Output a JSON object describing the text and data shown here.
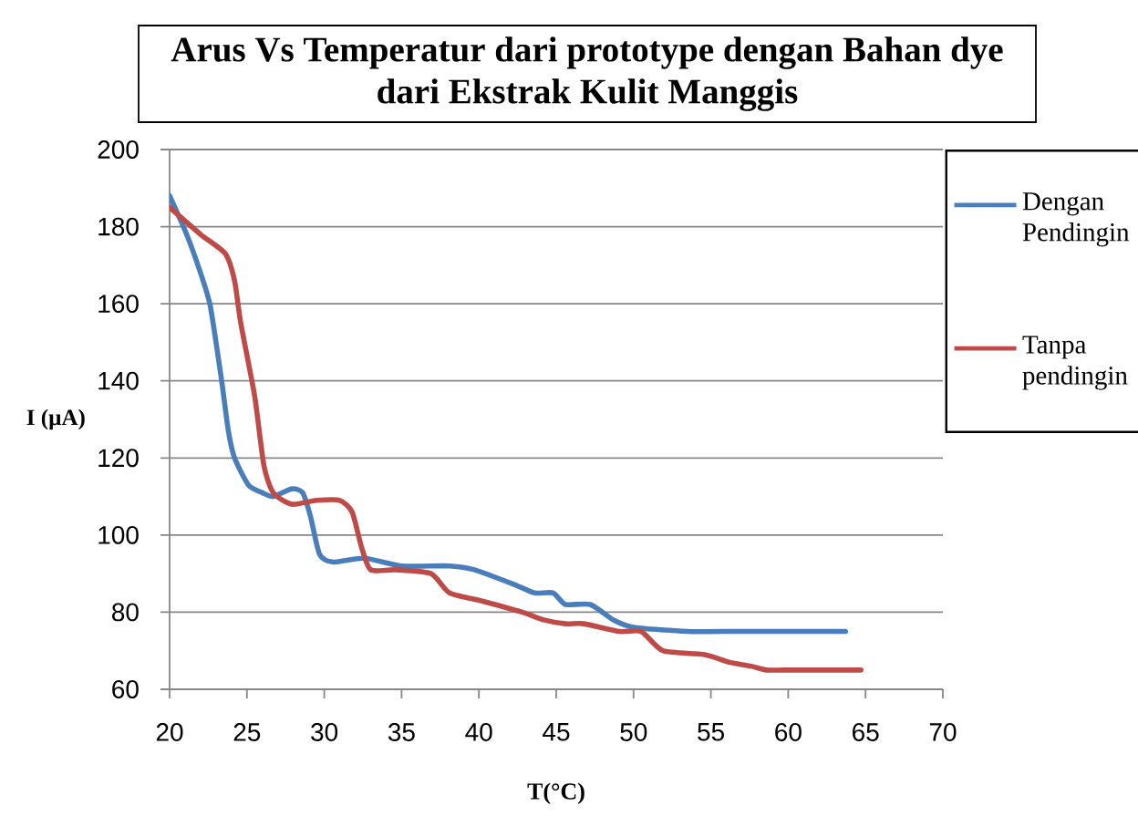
{
  "chart_data": {
    "type": "line",
    "title": "Arus Vs Temperatur dari prototype dengan Bahan dye dari Ekstrak Kulit Manggis",
    "xlabel": "T(°C)",
    "ylabel": "I (µA)",
    "xlim": [
      20,
      70
    ],
    "ylim": [
      60,
      200
    ],
    "xticks": [
      20,
      25,
      30,
      35,
      40,
      45,
      50,
      55,
      60,
      65,
      70
    ],
    "yticks": [
      60,
      80,
      100,
      120,
      140,
      160,
      180,
      200
    ],
    "grid": "y",
    "legend": "right",
    "series": [
      {
        "name": "Dengan Pendingin",
        "color": "#4a7ebb",
        "x": [
          20,
          21.1,
          22,
          22.6,
          23,
          23.4,
          23.8,
          24.2,
          25.1,
          26,
          26.7,
          27.9,
          28.6,
          29.1,
          29.7,
          30.6,
          32.6,
          35,
          38.1,
          39.7,
          42.4,
          43.6,
          44.8,
          45.6,
          47.2,
          48.7,
          50.1,
          53.5,
          55.8,
          63.7
        ],
        "values": [
          188,
          178,
          168,
          160,
          150,
          139,
          127,
          120,
          113,
          111,
          110,
          112,
          111,
          105,
          95,
          93,
          94,
          92,
          92,
          91,
          87,
          85,
          85,
          82,
          82,
          78,
          76,
          75,
          75,
          75
        ]
      },
      {
        "name": "Tanpa pendingin",
        "color": "#be4b48",
        "x": [
          20,
          22,
          23.6,
          24.2,
          24.6,
          25.5,
          26.1,
          26.7,
          27.9,
          29.5,
          31,
          31.8,
          32.4,
          33,
          34.6,
          36.9,
          38.1,
          40.1,
          42.8,
          44.2,
          45.6,
          46.8,
          49.1,
          50.5,
          51.9,
          54.6,
          56.2,
          57.6,
          58.6,
          59.7,
          60.9,
          64.7
        ],
        "values": [
          185,
          178,
          173,
          166,
          155,
          136,
          118,
          111,
          108,
          109,
          109,
          106,
          97,
          91,
          91,
          90,
          85,
          83,
          80,
          78,
          77,
          77,
          75,
          75,
          70,
          69,
          67,
          66,
          65,
          65,
          65,
          65
        ]
      }
    ]
  }
}
